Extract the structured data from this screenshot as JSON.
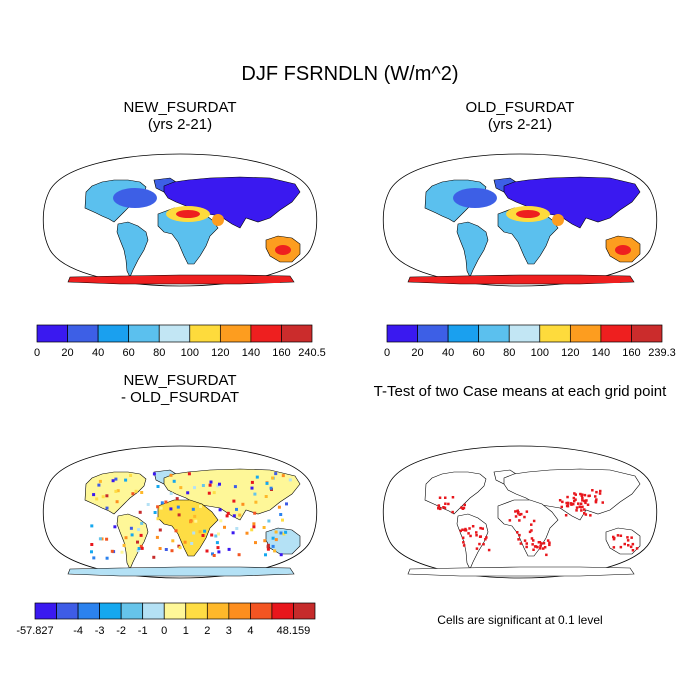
{
  "title": "DJF FSRNDLN (W/m^2)",
  "panels": [
    {
      "title_line1": "NEW_FSURDAT",
      "title_line2": "(yrs 2-21)"
    },
    {
      "title_line1": "OLD_FSURDAT",
      "title_line2": "(yrs 2-21)"
    },
    {
      "title_line1": "NEW_FSURDAT",
      "title_line2": "- OLD_FSURDAT"
    },
    {
      "title_line1": "T-Test of two Case means at each grid point",
      "title_line2": ""
    }
  ],
  "note": "Cells are significant at 0.1 level",
  "colors": {
    "new_bar": [
      "#3a19f0",
      "#3d5fe6",
      "#1aa0ef",
      "#5bc0ee",
      "#c2e6f4",
      "#fedb3c",
      "#fd9d1f",
      "#ee1f1f",
      "#cb2c2c"
    ],
    "diff_bar": [
      "#3a19f0",
      "#3e5ce6",
      "#2b82ee",
      "#15a8ef",
      "#66c4ea",
      "#b4e1f5",
      "#fef798",
      "#fedd44",
      "#feb82a",
      "#fd8e1e",
      "#f35522",
      "#e8161c",
      "#c62b2b"
    ],
    "sig": "#e8161c"
  },
  "chart_data": [
    {
      "type": "heatmap",
      "title": "NEW_FSURDAT (yrs 2-21)",
      "projection": "robinson",
      "colorbar_labels": [
        "0",
        "20",
        "40",
        "60",
        "80",
        "100",
        "120",
        "140",
        "160",
        "240.5"
      ],
      "range": [
        0,
        240.5
      ]
    },
    {
      "type": "heatmap",
      "title": "OLD_FSURDAT (yrs 2-21)",
      "projection": "robinson",
      "colorbar_labels": [
        "0",
        "20",
        "40",
        "60",
        "80",
        "100",
        "120",
        "140",
        "160",
        "239.3"
      ],
      "range": [
        0,
        239.3
      ]
    },
    {
      "type": "heatmap",
      "title": "NEW_FSURDAT - OLD_FSURDAT",
      "projection": "robinson",
      "colorbar_labels": [
        "-57.827",
        "-4",
        "-3",
        "-2",
        "-1",
        "0",
        "1",
        "2",
        "3",
        "4",
        "48.159"
      ],
      "range": [
        -57.827,
        48.159
      ]
    },
    {
      "type": "heatmap",
      "title": "T-Test of two Case means at each grid point",
      "projection": "robinson",
      "significance_level": 0.1
    }
  ]
}
